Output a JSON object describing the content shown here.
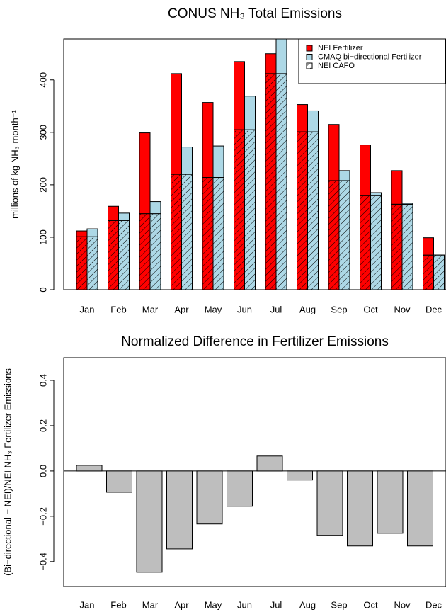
{
  "chart_data": [
    {
      "type": "grouped_stacked_bar",
      "title": "CONUS NH₃ Total Emissions",
      "ylabel": "millions of kg NH₃ month⁻¹",
      "categories": [
        "Jan",
        "Feb",
        "Mar",
        "Apr",
        "May",
        "Jun",
        "Jul",
        "Aug",
        "Sep",
        "Oct",
        "Nov",
        "Dec"
      ],
      "series": [
        {
          "name": "NEI Fertilizer",
          "color": "#ff0000",
          "values": [
            11,
            27,
            154,
            192,
            143,
            130,
            38,
            52,
            107,
            96,
            64,
            33
          ]
        },
        {
          "name": "CMAQ bi−directional Fertilizer",
          "color": "#add8e6",
          "values": [
            15,
            14,
            23,
            52,
            60,
            64,
            78,
            40,
            19,
            5,
            2,
            0
          ]
        },
        {
          "name": "NEI CAFO",
          "color": "#000000",
          "hatch": true,
          "values": [
            101,
            132,
            145,
            220,
            214,
            305,
            412,
            301,
            208,
            180,
            163,
            66
          ]
        }
      ],
      "ylim": [
        0,
        478
      ],
      "yticks": [
        0,
        100,
        200,
        300,
        400
      ],
      "legend": "top-right"
    },
    {
      "type": "bar",
      "title": "Normalized Difference in Fertilizer Emissions",
      "ylabel": "(Bi−directional − NEI)/NEI NH₃ Fertilizer Emissions",
      "categories": [
        "Jan",
        "Feb",
        "Mar",
        "Apr",
        "May",
        "Jun",
        "Jul",
        "Aug",
        "Sep",
        "Oct",
        "Nov",
        "Dec"
      ],
      "values": [
        0.025,
        -0.094,
        -0.447,
        -0.344,
        -0.234,
        -0.156,
        0.066,
        -0.04,
        -0.284,
        -0.331,
        -0.275,
        -0.331
      ],
      "color": "#bebebe",
      "ylim": [
        -0.51,
        0.5
      ],
      "yticks": [
        {
          "value": -0.4,
          "label": "−0.4"
        },
        {
          "value": -0.2,
          "label": "−0.2"
        },
        {
          "value": 0,
          "label": "0.0"
        },
        0.2,
        0.4
      ]
    }
  ]
}
